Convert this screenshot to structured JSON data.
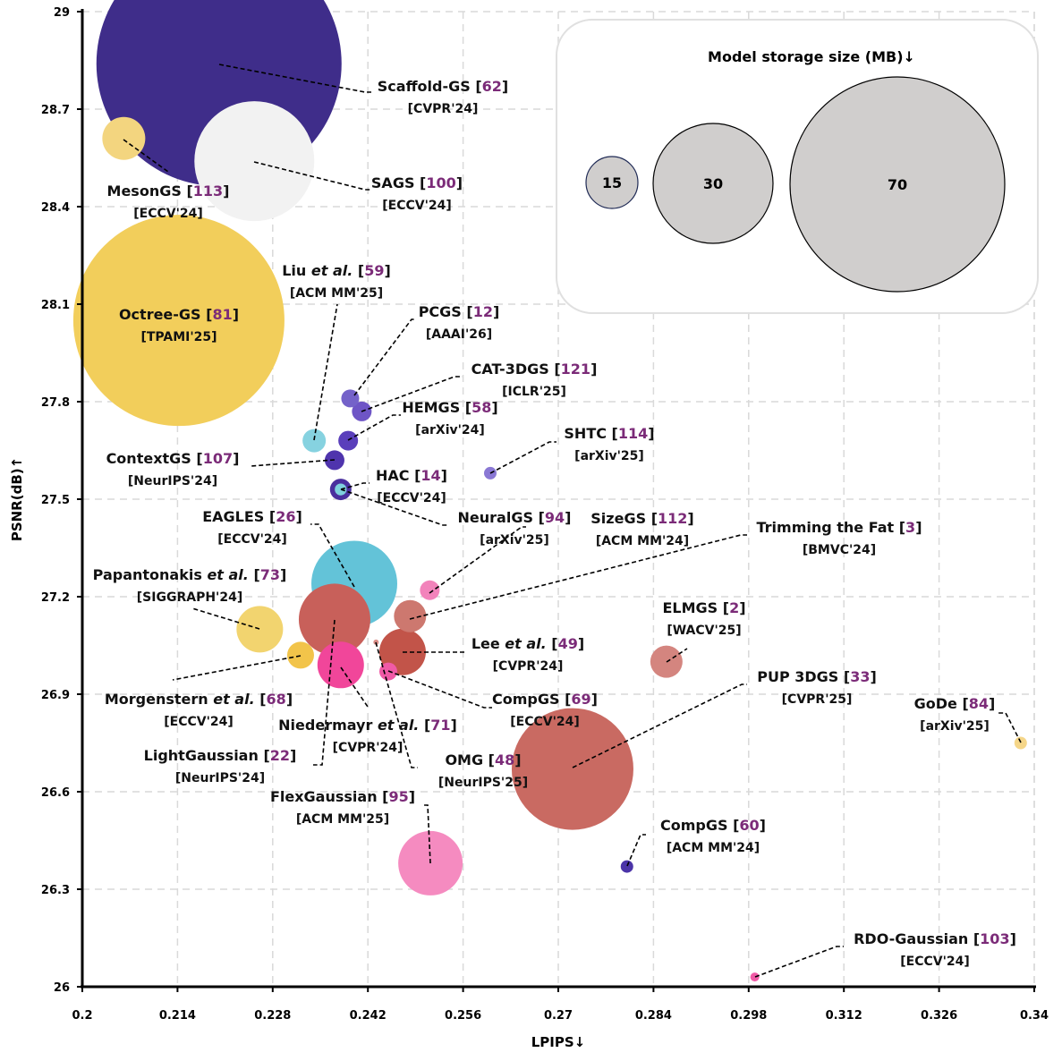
{
  "chart_data": {
    "type": "scatter",
    "subtype": "bubble",
    "title": "",
    "xlabel": "LPIPS↓",
    "ylabel": "PSNR(dB)↑",
    "xlim": [
      0.2,
      0.34
    ],
    "ylim": [
      26,
      29
    ],
    "xticks": [
      "0.2",
      "0.214",
      "0.228",
      "0.242",
      "0.256",
      "0.27",
      "0.284",
      "0.298",
      "0.312",
      "0.326",
      "0.34"
    ],
    "yticks": [
      "26",
      "26.3",
      "26.6",
      "26.9",
      "27.2",
      "27.5",
      "27.8",
      "28.1",
      "28.4",
      "28.7",
      "29"
    ],
    "grid": true,
    "legend": {
      "title": "Model storage size (MB)↓",
      "placement": "top-right",
      "sizes": [
        15,
        30,
        70
      ],
      "labels": [
        "15",
        "30",
        "70"
      ]
    },
    "points": [
      {
        "name": "Scaffold-GS",
        "ref": "62",
        "venue": "[CVPR'24]",
        "lpips": 0.2201,
        "psnr": 28.84,
        "size_mb": 82,
        "color": "#3f2d8a"
      },
      {
        "name": "MesonGS",
        "ref": "113",
        "venue": "[ECCV'24]",
        "lpips": 0.2061,
        "psnr": 28.61,
        "size_mb": 13,
        "color": "#f3d57f"
      },
      {
        "name": "SAGS",
        "ref": "100",
        "venue": "[ECCV'24]",
        "lpips": 0.2253,
        "psnr": 28.54,
        "size_mb": 30,
        "color": "#f2f2f2"
      },
      {
        "name": "Octree-GS",
        "ref": "81",
        "venue": "[TPAMI'25]",
        "lpips": 0.2142,
        "psnr": 28.05,
        "size_mb": 68,
        "color": "#f2ce5b"
      },
      {
        "name": "Liu",
        "name_italic": "et al.",
        "ref": "59",
        "venue": "[ACM MM'25]",
        "lpips": 0.2341,
        "psnr": 27.68,
        "size_mb": 7,
        "color": "#86d2e0"
      },
      {
        "name": "PCGS",
        "ref": "12",
        "venue": "[AAAI'26]",
        "lpips": 0.2394,
        "psnr": 27.81,
        "size_mb": 5,
        "color": "#7462c9"
      },
      {
        "name": "CAT-3DGS",
        "ref": "121",
        "venue": "[ICLR'25]",
        "lpips": 0.2411,
        "psnr": 27.77,
        "size_mb": 6,
        "color": "#6e55c6"
      },
      {
        "name": "HEMGS",
        "ref": "58",
        "venue": "[arXiv'24]",
        "lpips": 0.2391,
        "psnr": 27.68,
        "size_mb": 6,
        "color": "#5a3fbb"
      },
      {
        "name": "ContextGS",
        "ref": "107",
        "venue": "[NeurIPS'24]",
        "lpips": 0.2371,
        "psnr": 27.62,
        "size_mb": 6,
        "color": "#4f34ad"
      },
      {
        "name": "HAC",
        "ref": "14",
        "venue": "[ECCV'24]",
        "lpips": 0.238,
        "psnr": 27.53,
        "size_mb": 6,
        "color": "#4a2f9e",
        "inner_color": "#7fd0de"
      },
      {
        "name": "SHTC",
        "ref": "114",
        "venue": "[arXiv'25]",
        "lpips": 0.26,
        "psnr": 27.58,
        "size_mb": 3,
        "color": "#8a78d4"
      },
      {
        "name": "NeuralGS",
        "ref": "94",
        "venue": "[arXiv'25]",
        "lpips": 0.238,
        "psnr": 27.53,
        "size_mb": 4,
        "color": "#7fd0de"
      },
      {
        "name": "EAGLES",
        "ref": "26",
        "venue": "[ECCV'24]",
        "lpips": 0.24,
        "psnr": 27.24,
        "size_mb": 28,
        "color": "#63c3d8"
      },
      {
        "name": "SizeGS",
        "ref": "112",
        "venue": "[ACM MM'24]",
        "lpips": 0.2511,
        "psnr": 27.22,
        "size_mb": 5,
        "color": "#f283bb"
      },
      {
        "name": "Trimming the Fat",
        "ref": "3",
        "venue": "[BMVC'24]",
        "lpips": 0.2482,
        "psnr": 27.14,
        "size_mb": 9,
        "color": "#cd786f"
      },
      {
        "name": "Papantonakis",
        "name_italic": "et al.",
        "ref": "73",
        "venue": "[SIGGRAPH'24]",
        "lpips": 0.2261,
        "psnr": 27.1,
        "size_mb": 13,
        "color": "#f2d46f"
      },
      {
        "name": "LightGaussian",
        "ref": "22",
        "venue": "[NeurIPS'24]",
        "lpips": 0.2371,
        "psnr": 27.13,
        "size_mb": 22,
        "color": "#c8605a"
      },
      {
        "name": "Morgenstern",
        "name_italic": "et al.",
        "ref": "68",
        "venue": "[ECCV'24]",
        "lpips": 0.2321,
        "psnr": 27.02,
        "size_mb": 7,
        "color": "#f2c44a"
      },
      {
        "name": "Lee",
        "name_italic": "et al.",
        "ref": "49",
        "venue": "[CVPR'24]",
        "lpips": 0.2471,
        "psnr": 27.03,
        "size_mb": 13,
        "color": "#c25449"
      },
      {
        "name": "Niedermayr",
        "name_italic": "et al.",
        "ref": "71",
        "venue": "[CVPR'24]",
        "lpips": 0.238,
        "psnr": 26.99,
        "size_mb": 13,
        "color": "#f1469a"
      },
      {
        "name": "OMG",
        "ref": "48",
        "venue": "[NeurIPS'25]",
        "lpips": 0.2432,
        "psnr": 27.06,
        "size_mb": 1,
        "color": "#d98d87"
      },
      {
        "name": "CompGS",
        "ref": "69",
        "venue": "[ECCV'24]",
        "lpips": 0.245,
        "psnr": 26.97,
        "size_mb": 5,
        "color": "#f05aa6"
      },
      {
        "name": "ELMGS",
        "ref": "2",
        "venue": "[WACV'25]",
        "lpips": 0.2859,
        "psnr": 27.0,
        "size_mb": 9,
        "color": "#d4857f"
      },
      {
        "name": "PUP 3DGS",
        "ref": "33",
        "venue": "[CVPR'25]",
        "lpips": 0.2721,
        "psnr": 26.67,
        "size_mb": 40,
        "color": "#c96a62"
      },
      {
        "name": "GoDe",
        "ref": "84",
        "venue": "[arXiv'25]",
        "lpips": 0.338,
        "psnr": 26.75,
        "size_mb": 3,
        "color": "#f5d689"
      },
      {
        "name": "FlexGaussian",
        "ref": "95",
        "venue": "[ACM MM'25]",
        "lpips": 0.2512,
        "psnr": 26.38,
        "size_mb": 19,
        "color": "#f58bc0"
      },
      {
        "name": "CompGS",
        "ref": "60",
        "venue": "[ACM MM'24]",
        "lpips": 0.2801,
        "psnr": 26.37,
        "size_mb": 3,
        "color": "#4b34a8"
      },
      {
        "name": "RDO-Gaussian",
        "ref": "103",
        "venue": "[ECCV'24]",
        "lpips": 0.2989,
        "psnr": 26.03,
        "size_mb": 2,
        "color": "#f05aa6"
      }
    ]
  }
}
